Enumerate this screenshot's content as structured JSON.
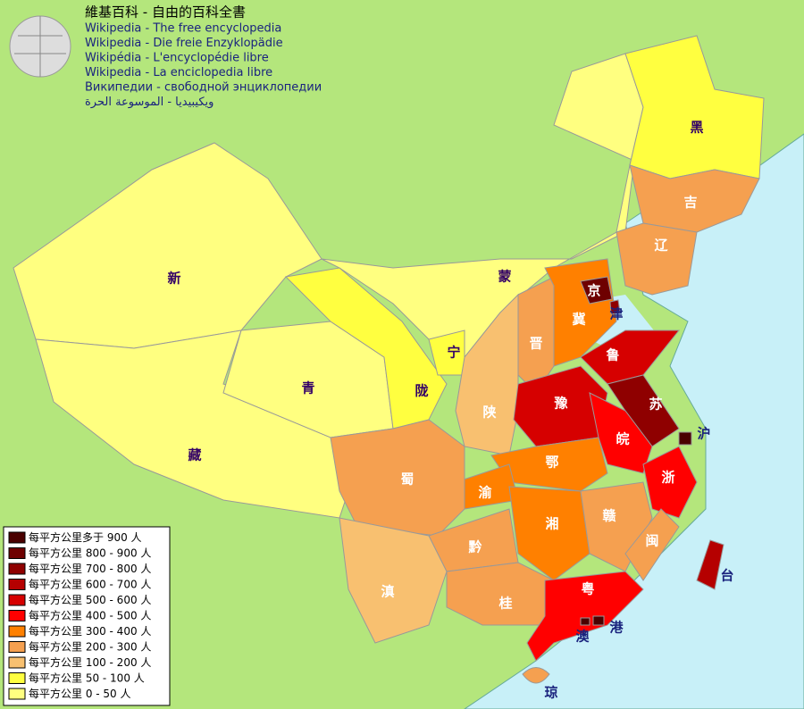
{
  "header": {
    "title": "維基百科 - 自由的百科全書",
    "lines": [
      "Wikipedia - The free encyclopedia",
      "Wikipedia - Die freie Enzyklopädie",
      "Wikipédia - L'encyclopédie libre",
      "Wikipedia - La enciclopedia libre",
      "Википедии - свободной энциклопедии",
      "ويكيبيديا - الموسوعة الحرة"
    ]
  },
  "legend": [
    {
      "label": "每平方公里多于 900 人",
      "color": "#4a0000"
    },
    {
      "label": "每平方公里 800 - 900 人",
      "color": "#6e0000"
    },
    {
      "label": "每平方公里 700 - 800 人",
      "color": "#8f0000"
    },
    {
      "label": "每平方公里 600 - 700 人",
      "color": "#b50000"
    },
    {
      "label": "每平方公里 500 - 600 人",
      "color": "#d60000"
    },
    {
      "label": "每平方公里 400 - 500 人",
      "color": "#ff0000"
    },
    {
      "label": "每平方公里 300 - 400 人",
      "color": "#ff8000"
    },
    {
      "label": "每平方公里 200 - 300 人",
      "color": "#f5a050"
    },
    {
      "label": "每平方公里 100 - 200 人",
      "color": "#f8c070"
    },
    {
      "label": "每平方公里 50 - 100 人",
      "color": "#ffff40"
    },
    {
      "label": "每平方公里 0 - 50 人",
      "color": "#ffff80"
    }
  ],
  "regions": [
    {
      "label": "新",
      "color": "#ffff80"
    },
    {
      "label": "藏",
      "color": "#ffff80"
    },
    {
      "label": "青",
      "color": "#ffff80"
    },
    {
      "label": "蒙",
      "color": "#ffff80"
    },
    {
      "label": "陇",
      "color": "#ffff40"
    },
    {
      "label": "宁",
      "color": "#ffff40"
    },
    {
      "label": "黑",
      "color": "#ffff40"
    },
    {
      "label": "吉",
      "color": "#f5a050"
    },
    {
      "label": "辽",
      "color": "#f5a050"
    },
    {
      "label": "晋",
      "color": "#f5a050"
    },
    {
      "label": "陕",
      "color": "#f8c070"
    },
    {
      "label": "冀",
      "color": "#ff8000"
    },
    {
      "label": "京",
      "color": "#6e0000"
    },
    {
      "label": "津",
      "color": "#8f0000"
    },
    {
      "label": "鲁",
      "color": "#d60000"
    },
    {
      "label": "豫",
      "color": "#d60000"
    },
    {
      "label": "苏",
      "color": "#8f0000"
    },
    {
      "label": "沪",
      "color": "#4a0000"
    },
    {
      "label": "皖",
      "color": "#ff0000"
    },
    {
      "label": "浙",
      "color": "#ff0000"
    },
    {
      "label": "鄂",
      "color": "#ff8000"
    },
    {
      "label": "渝",
      "color": "#ff8000"
    },
    {
      "label": "蜀",
      "color": "#f5a050"
    },
    {
      "label": "湘",
      "color": "#ff8000"
    },
    {
      "label": "赣",
      "color": "#f5a050"
    },
    {
      "label": "闽",
      "color": "#f5a050"
    },
    {
      "label": "黔",
      "color": "#f5a050"
    },
    {
      "label": "滇",
      "color": "#f8c070"
    },
    {
      "label": "桂",
      "color": "#f5a050"
    },
    {
      "label": "粤",
      "color": "#ff0000"
    },
    {
      "label": "台",
      "color": "#b50000"
    },
    {
      "label": "港",
      "color": "#4a0000"
    },
    {
      "label": "澳",
      "color": "#4a0000"
    },
    {
      "label": "琼",
      "color": "#f5a050"
    }
  ]
}
